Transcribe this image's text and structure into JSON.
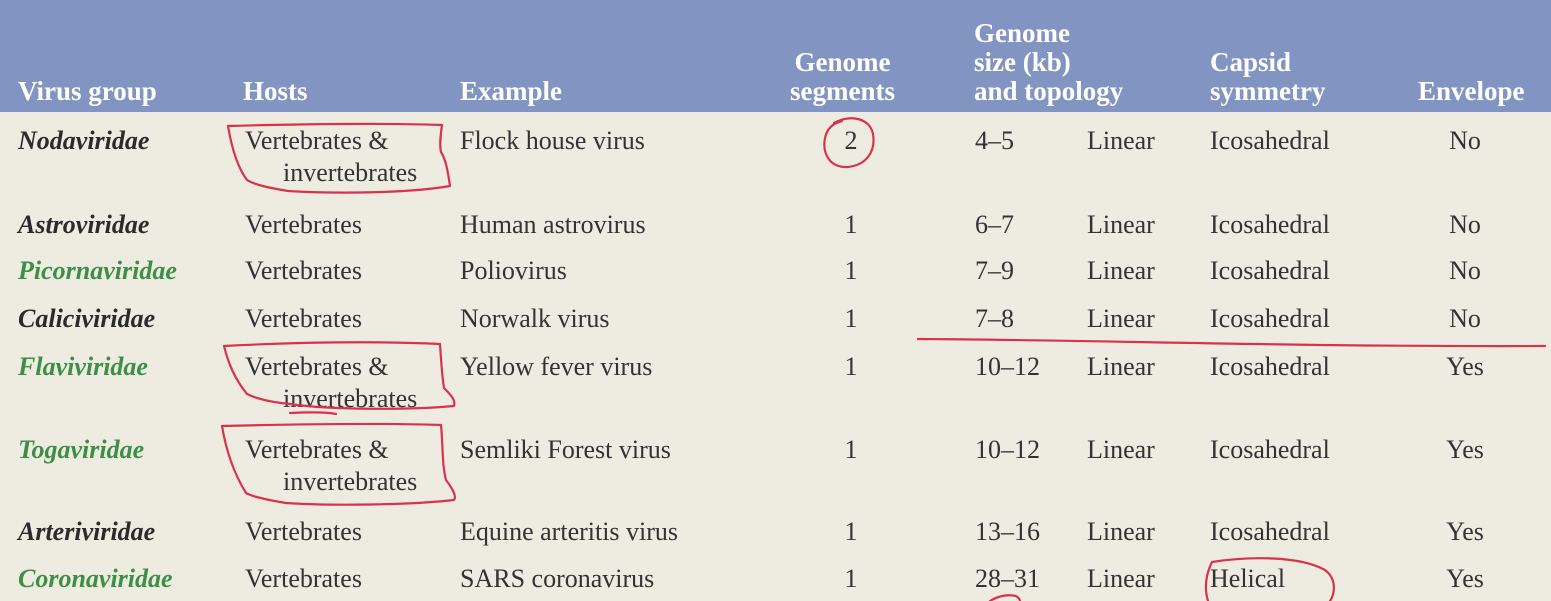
{
  "header": {
    "virus_group": "Virus group",
    "hosts": "Hosts",
    "example": "Example",
    "genome_segments": [
      "Genome",
      "segments"
    ],
    "genome_size": [
      "Genome",
      "size (kb)",
      "and topology"
    ],
    "capsid": [
      "Capsid",
      "symmetry"
    ],
    "envelope": "Envelope"
  },
  "rows": [
    {
      "group": "Nodaviridae",
      "green": false,
      "hosts": [
        "Vertebrates &",
        "invertebrates"
      ],
      "example": "Flock house virus",
      "segments": "2",
      "size": "4–5",
      "topology": "Linear",
      "capsid": "Icosahedral",
      "envelope": "No"
    },
    {
      "group": "Astroviridae",
      "green": false,
      "hosts": [
        "Vertebrates"
      ],
      "example": "Human astrovirus",
      "segments": "1",
      "size": "6–7",
      "topology": "Linear",
      "capsid": "Icosahedral",
      "envelope": "No"
    },
    {
      "group": "Picornaviridae",
      "green": true,
      "hosts": [
        "Vertebrates"
      ],
      "example": "Poliovirus",
      "segments": "1",
      "size": "7–9",
      "topology": "Linear",
      "capsid": "Icosahedral",
      "envelope": "No"
    },
    {
      "group": "Caliciviridae",
      "green": false,
      "hosts": [
        "Vertebrates"
      ],
      "example": "Norwalk virus",
      "segments": "1",
      "size": "7–8",
      "topology": "Linear",
      "capsid": "Icosahedral",
      "envelope": "No"
    },
    {
      "group": "Flaviviridae",
      "green": true,
      "hosts": [
        "Vertebrates &",
        "invertebrates"
      ],
      "example": "Yellow fever virus",
      "segments": "1",
      "size": "10–12",
      "topology": "Linear",
      "capsid": "Icosahedral",
      "envelope": "Yes"
    },
    {
      "group": "Togaviridae",
      "green": true,
      "hosts": [
        "Vertebrates &",
        "invertebrates"
      ],
      "example": "Semliki Forest virus",
      "segments": "1",
      "size": "10–12",
      "topology": "Linear",
      "capsid": "Icosahedral",
      "envelope": "Yes"
    },
    {
      "group": "Arteriviridae",
      "green": false,
      "hosts": [
        "Vertebrates"
      ],
      "example": "Equine arteritis virus",
      "segments": "1",
      "size": "13–16",
      "topology": "Linear",
      "capsid": "Icosahedral",
      "envelope": "Yes"
    },
    {
      "group": "Coronaviridae",
      "green": true,
      "hosts": [
        "Vertebrates"
      ],
      "example": "SARS coronavirus",
      "segments": "1",
      "size": "28–31",
      "topology": "Linear",
      "capsid": "Helical",
      "envelope": "Yes"
    }
  ],
  "colors": {
    "header_bg": "#8294c2",
    "body_bg": "#eeebe1",
    "green_family": "#3d8f46",
    "annotation_red": "#d8334a"
  }
}
